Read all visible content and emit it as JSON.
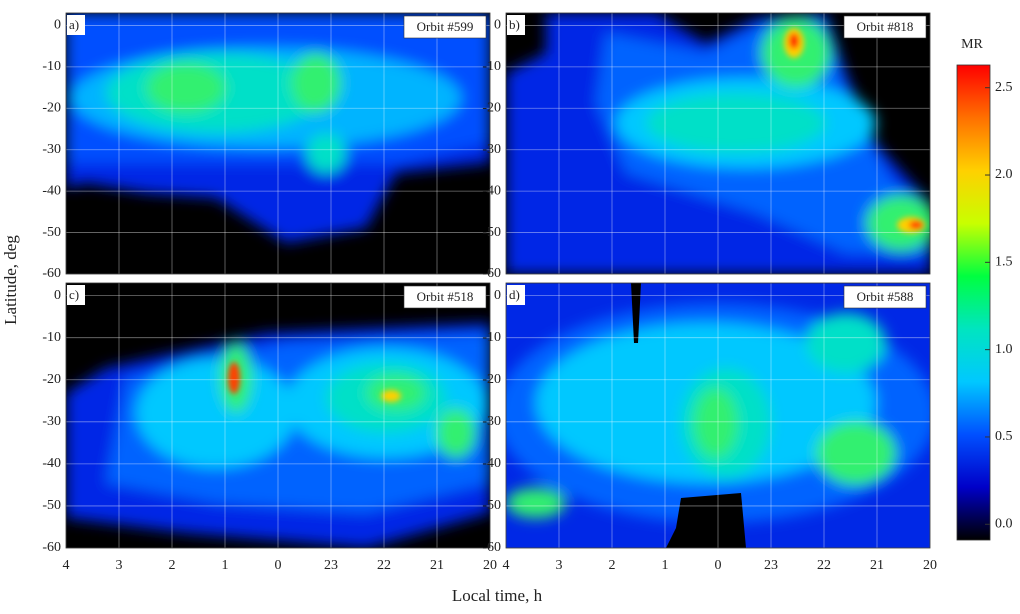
{
  "chart_data": {
    "type": "heatmap",
    "x_label": "Local time, h",
    "y_label": "Latitude, deg",
    "xlim": [
      4,
      -4
    ],
    "xticks": [
      4,
      3,
      2,
      1,
      0,
      {
        "value": -1,
        "label": "23"
      },
      {
        "value": -2,
        "label": "22"
      },
      {
        "value": -3,
        "label": "21"
      },
      {
        "value": -4,
        "label": "20"
      }
    ],
    "ylim": [
      -60,
      3
    ],
    "yticks": [
      -60,
      -50,
      -40,
      -30,
      -20,
      -10,
      0
    ],
    "grid": true,
    "panels": [
      {
        "label": "a)",
        "annotation": "Orbit #599"
      },
      {
        "label": "b)",
        "annotation": "Orbit #818"
      },
      {
        "label": "c)",
        "annotation": "Orbit #518"
      },
      {
        "label": "d)",
        "annotation": "Orbit #588"
      }
    ],
    "colorbar": {
      "label": "MR",
      "lim": [
        -0.09,
        2.63
      ],
      "ticks": [
        {
          "value": 0,
          "label": "0.0"
        },
        0.5,
        {
          "value": 1,
          "label": "1.0"
        },
        1.5,
        {
          "value": 2,
          "label": "2.0"
        },
        2.5
      ],
      "colors": [
        "#000000",
        "#0000c8",
        "#0050ff",
        "#00c8ff",
        "#00e5c0",
        "#00ff40",
        "#c8ff00",
        "#ffd000",
        "#ff7000",
        "#ff0000"
      ]
    }
  }
}
